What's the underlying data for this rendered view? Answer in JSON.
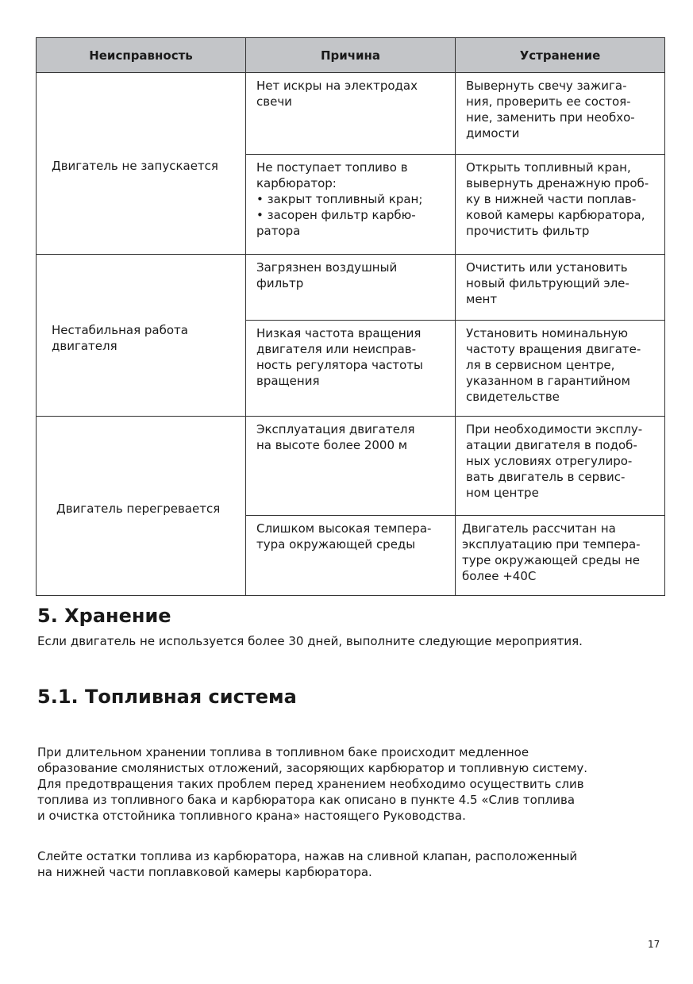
{
  "table": {
    "headers": [
      "Неисправность",
      "Причина",
      "Устранение"
    ],
    "groups": [
      {
        "fault": "Двигатель не запускается",
        "rows": [
          {
            "cause": "Нет искры на электродах\nсвечи",
            "fix": "Вывернуть свечу зажига-\nния, проверить ее состоя-\nние, заменить при необхо-\nдимости"
          },
          {
            "cause": "Не поступает топливо в\nкарбюратор:\n•   закрыт топливный кран;\n•   засорен фильтр карбю-\nратора",
            "fix": "Открыть топливный кран,\nвывернуть дренажную проб-\nку в нижней части поплав-\nковой камеры карбюратора,\nпрочистить фильтр"
          }
        ]
      },
      {
        "fault": "Нестабильная работа\nдвигателя",
        "rows": [
          {
            "cause": "Загрязнен воздушный\nфильтр",
            "fix": "Очистить или установить\nновый фильтрующий эле-\nмент"
          },
          {
            "cause": "Низкая частота вращения\nдвигателя или неисправ-\nность регулятора частоты\nвращения",
            "fix": "Установить номинальную\nчастоту вращения двигате-\nля в сервисном центре,\nуказанном в гарантийном\nсвидетельстве"
          }
        ]
      },
      {
        "fault": "Двигатель перегревается",
        "rows": [
          {
            "cause": "Эксплуатация двигателя\nна высоте более 2000 м",
            "fix": "При необходимости эксплу-\nатации двигателя в подоб-\nных условиях отрегулиро-\nвать двигатель в сервис-\nном центре"
          },
          {
            "cause": "Слишком высокая темпера-\nтура окружающей среды",
            "fix": "Двигатель рассчитан на\nэксплуатацию при темпера-\nтуре окружающей среды не\nболее +40С"
          }
        ]
      }
    ]
  },
  "section5": {
    "title": "5. Хранение",
    "text": "Если двигатель не используется более 30 дней, выполните следующие мероприятия."
  },
  "section51": {
    "title": "5.1. Топливная система",
    "para1": "При длительном хранении топлива в топливном баке происходит медленное\nобразование смолянистых отложений, засоряющих карбюратор и топливную систему.\nДля предотвращения таких проблем перед хранением необходимо осуществить слив\nтоплива из топливного бака и карбюратора как описано в пункте 4.5 «Слив топлива\nи очистка отстойника топливного крана» настоящего Руководства.",
    "para2": "Слейте остатки топлива из карбюратора, нажав на сливной клапан, расположенный\nна нижней части поплавковой камеры карбюратора."
  },
  "page_number": "17",
  "colors": {
    "header_bg": "#c3c5c8",
    "border": "#333333"
  }
}
